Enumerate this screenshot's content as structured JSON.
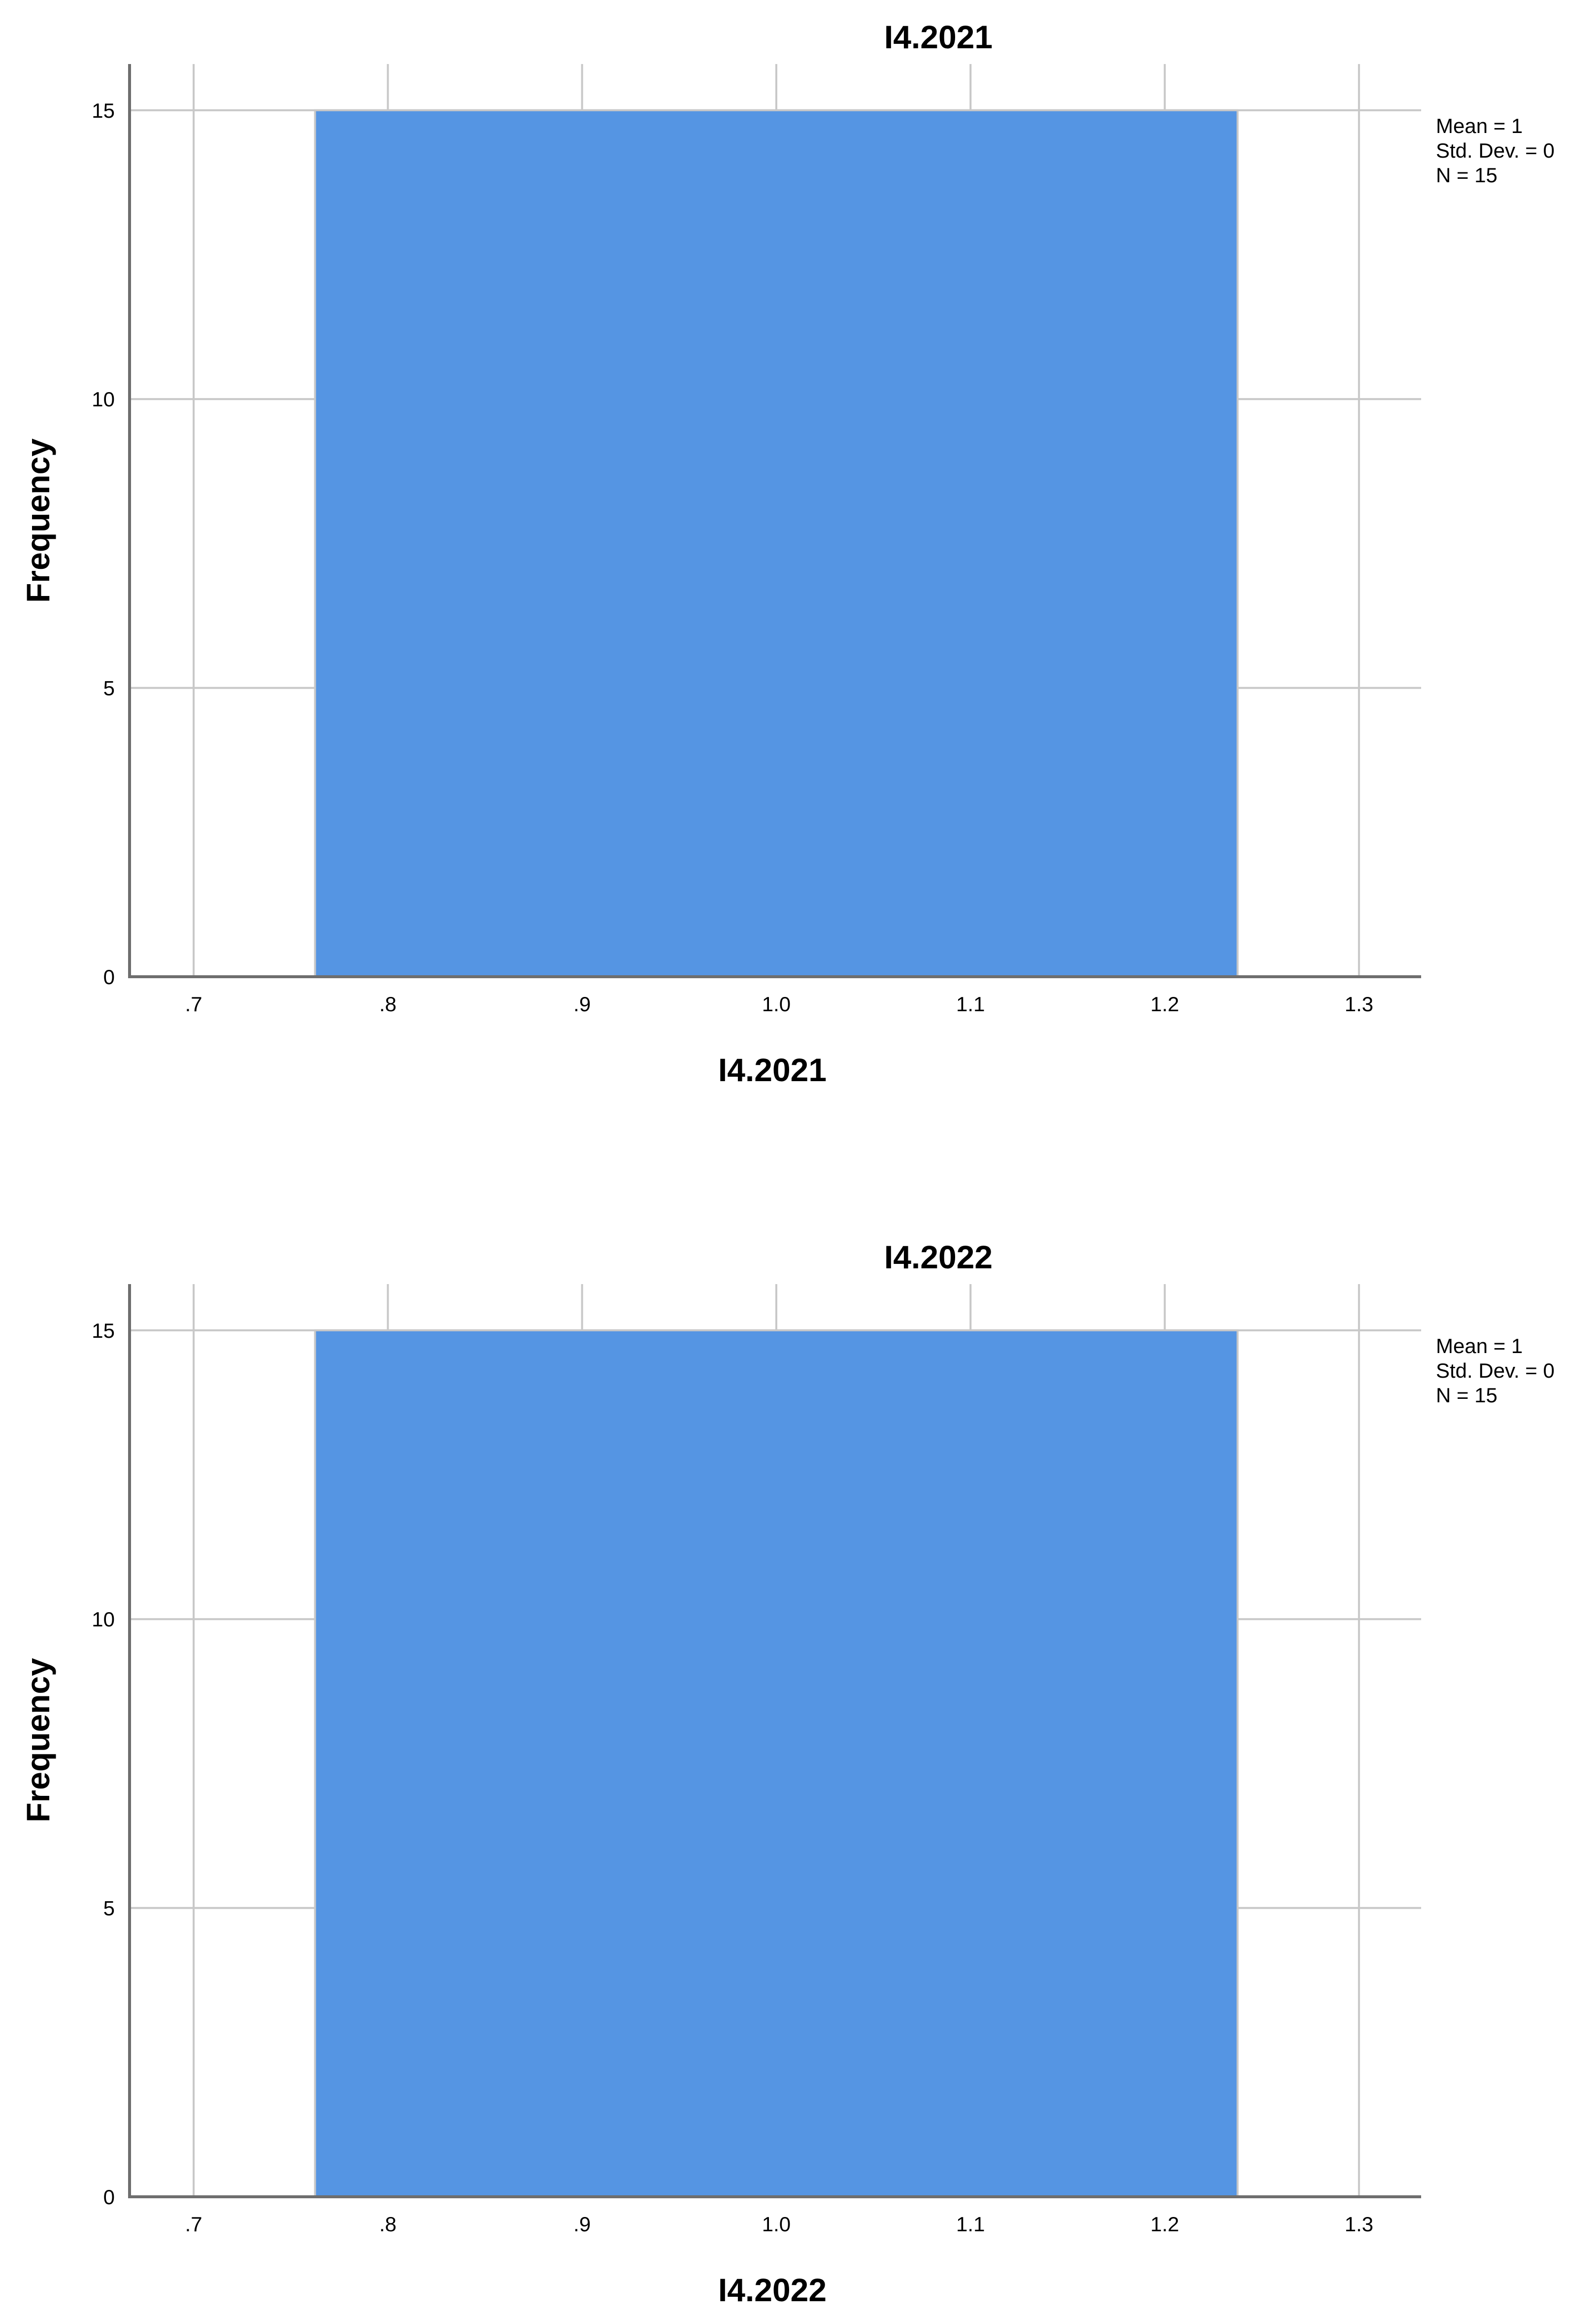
{
  "chart_data": [
    {
      "type": "bar",
      "title": "I4.2021",
      "xlabel": "I4.2021",
      "ylabel": "Frequency",
      "bins": [
        {
          "start": 0.7625,
          "end": 1.2375,
          "count": 15
        }
      ],
      "xticks": [
        0.7,
        0.8,
        0.9,
        1.0,
        1.1,
        1.2,
        1.3
      ],
      "xtick_labels": [
        ".7",
        ".8",
        ".9",
        "1.0",
        "1.1",
        "1.2",
        "1.3"
      ],
      "yticks": [
        0,
        5,
        10,
        15
      ],
      "ytick_labels": [
        "0",
        "5",
        "10",
        "15"
      ],
      "xlim": [
        0.667,
        1.332
      ],
      "ylim": [
        0,
        15.8
      ],
      "grid": true,
      "bar_color": "#5595e3",
      "stats": [
        "Mean = 1",
        "Std. Dev. = 0",
        "N = 15"
      ],
      "stats_placement": "top-right"
    },
    {
      "type": "bar",
      "title": "I4.2022",
      "xlabel": "I4.2022",
      "ylabel": "Frequency",
      "bins": [
        {
          "start": 0.7625,
          "end": 1.2375,
          "count": 15
        }
      ],
      "xticks": [
        0.7,
        0.8,
        0.9,
        1.0,
        1.1,
        1.2,
        1.3
      ],
      "xtick_labels": [
        ".7",
        ".8",
        ".9",
        "1.0",
        "1.1",
        "1.2",
        "1.3"
      ],
      "yticks": [
        0,
        5,
        10,
        15
      ],
      "ytick_labels": [
        "0",
        "5",
        "10",
        "15"
      ],
      "xlim": [
        0.667,
        1.332
      ],
      "ylim": [
        0,
        15.8
      ],
      "grid": true,
      "bar_color": "#5595e3",
      "stats": [
        "Mean = 1",
        "Std. Dev. = 0",
        "N = 15"
      ],
      "stats_placement": "top-right"
    }
  ]
}
